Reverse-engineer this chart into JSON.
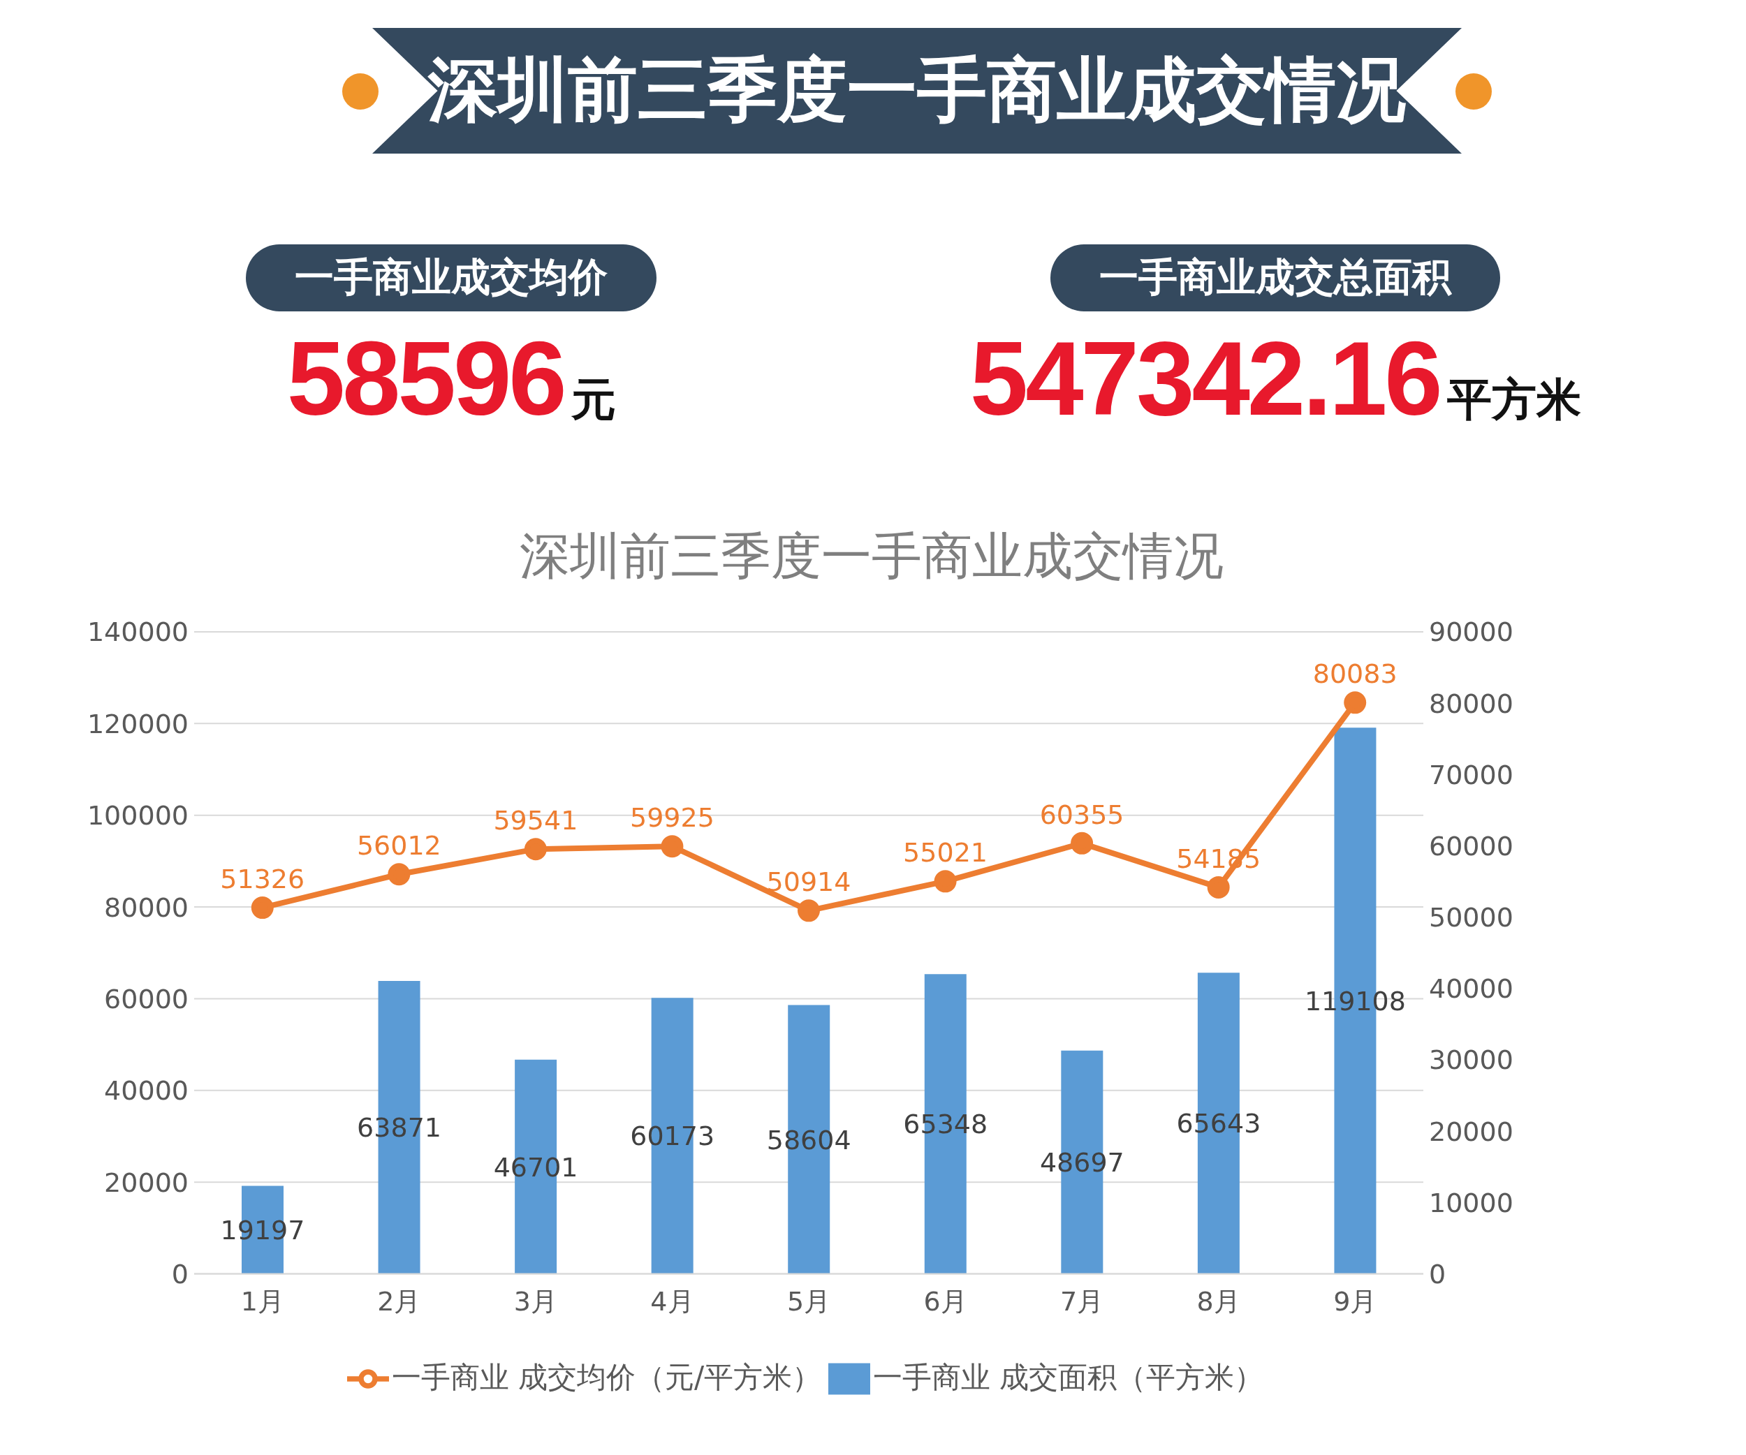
{
  "chart_data": [
    {
      "type": "other",
      "title": "深圳前三季度一手商业成交情况",
      "annotations": [
        "一手商业成交均价",
        "58596",
        "元",
        "一手商业成交总面积",
        "547342.16",
        "平方米"
      ]
    },
    {
      "type": "bar",
      "title": "深圳前三季度一手商业成交情况",
      "categories": [
        "1月",
        "2月",
        "3月",
        "4月",
        "5月",
        "6月",
        "7月",
        "8月",
        "9月"
      ],
      "series": [
        {
          "type": "bar",
          "name": "一手商业 成交面积（平方米）",
          "color": "#5b9bd5",
          "values": [
            19197,
            63871,
            46701,
            60173,
            58604,
            65348,
            48697,
            65643,
            119108
          ]
        },
        {
          "type": "line",
          "axis": "y2",
          "name": "一手商业 成交均价（元/平方米）",
          "color": "#ed7d31",
          "values": [
            51326,
            56012,
            59541,
            59925,
            50914,
            55021,
            60355,
            54185,
            80083
          ]
        }
      ],
      "ylim": [
        0,
        140000
      ],
      "yticks": [
        0,
        20000,
        40000,
        60000,
        80000,
        100000,
        120000,
        140000
      ],
      "y2lim": [
        0,
        90000
      ],
      "y2ticks": [
        0,
        10000,
        20000,
        30000,
        40000,
        50000,
        60000,
        70000,
        80000,
        90000
      ],
      "grid": "y",
      "legend": "bottom",
      "marker": "circle",
      "line_style": "solid",
      "data_labels": true
    }
  ]
}
